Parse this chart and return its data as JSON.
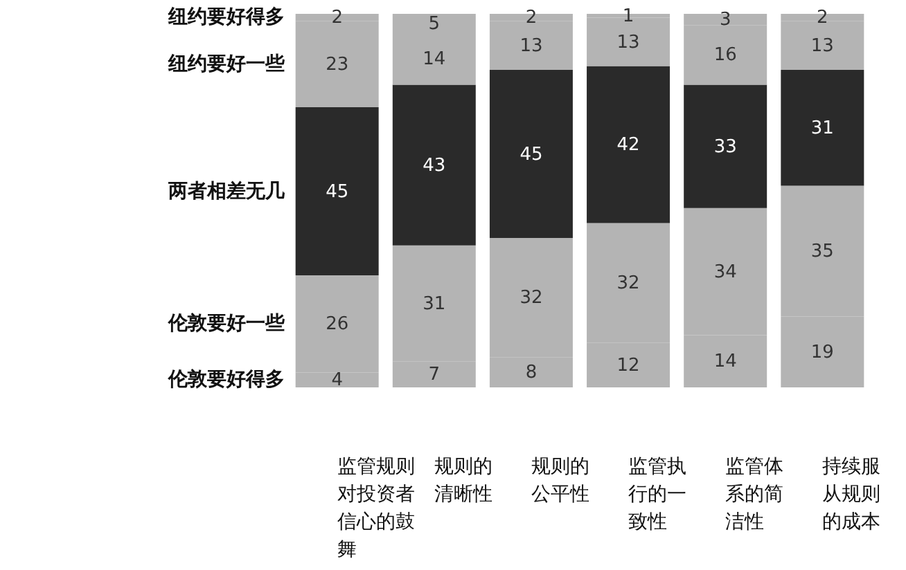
{
  "chart_data": {
    "type": "bar",
    "stacked": true,
    "data_labels": true,
    "categories": [
      "监管规则对投资者信心的鼓舞",
      "规则的清晰性",
      "规则的公平性",
      "监管执行的一致性",
      "监管体系的简洁性",
      "持续服从规则的成本"
    ],
    "series": [
      {
        "name": "伦敦要好得多",
        "color": "#b4b4b4",
        "values": [
          4,
          7,
          8,
          12,
          14,
          19
        ]
      },
      {
        "name": "伦敦要好一些",
        "color": "#b4b4b4",
        "values": [
          26,
          31,
          32,
          32,
          34,
          35
        ]
      },
      {
        "name": "两者相差无几",
        "color": "#2a2a2a",
        "values": [
          45,
          43,
          45,
          42,
          33,
          31
        ]
      },
      {
        "name": "纽约要好一些",
        "color": "#b4b4b4",
        "values": [
          23,
          14,
          13,
          13,
          16,
          13
        ]
      },
      {
        "name": "纽约要好得多",
        "color": "#b4b4b4",
        "values": [
          2,
          5,
          2,
          1,
          3,
          2
        ]
      }
    ]
  }
}
